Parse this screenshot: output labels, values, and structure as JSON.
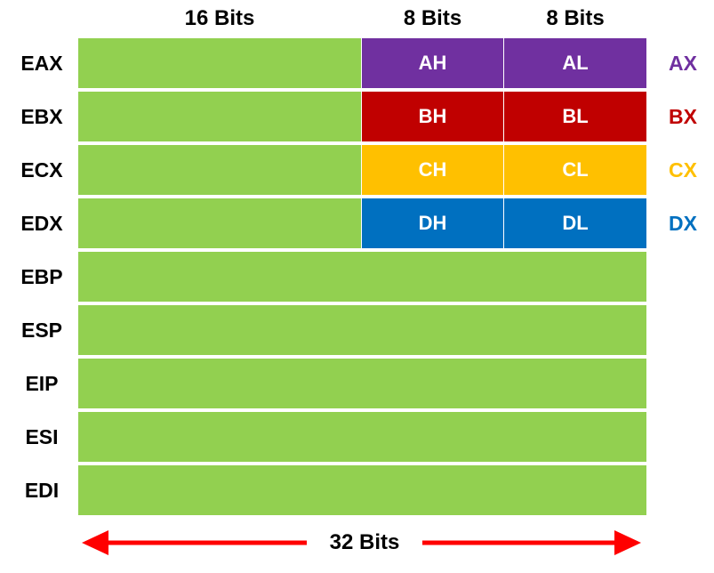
{
  "headers": {
    "high": "16 Bits",
    "byte_high": "8 Bits",
    "byte_low": "8 Bits"
  },
  "registers": [
    {
      "name": "EAX",
      "high": "AH",
      "low": "AL",
      "word": "AX",
      "color": "#7030a0"
    },
    {
      "name": "EBX",
      "high": "BH",
      "low": "BL",
      "word": "BX",
      "color": "#c00000"
    },
    {
      "name": "ECX",
      "high": "CH",
      "low": "CL",
      "word": "CX",
      "color": "#ffc000"
    },
    {
      "name": "EDX",
      "high": "DH",
      "low": "DL",
      "word": "DX",
      "color": "#0070c0"
    },
    {
      "name": "EBP"
    },
    {
      "name": "ESP"
    },
    {
      "name": "EIP"
    },
    {
      "name": "ESI"
    },
    {
      "name": "EDI"
    }
  ],
  "green_color": "#92d050",
  "arrow_color": "#ff0000",
  "total_bits_label": "32 Bits"
}
